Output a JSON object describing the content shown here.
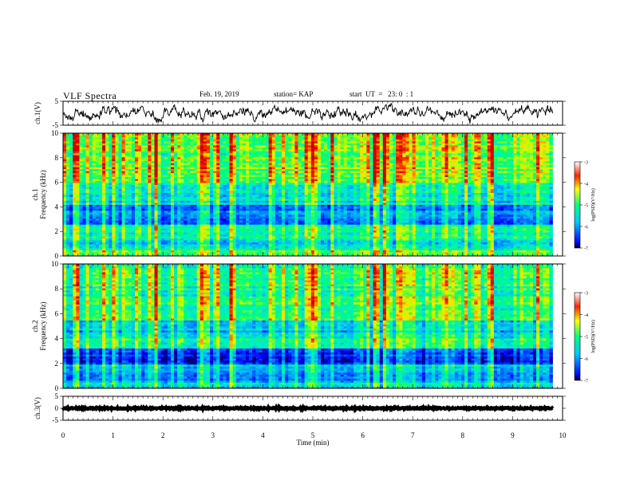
{
  "header": {
    "title": "VLF Spectra",
    "date": "Feb. 19, 2019",
    "station": "station= KAP",
    "start_ut": "start  UT  =   23: 0  : 1"
  },
  "chart_data": [
    {
      "type": "line",
      "name": "ch1-waveform",
      "ylabel": "ch.1(V)",
      "ylim": [
        -5,
        5
      ],
      "yticks": [
        "5",
        "-5"
      ],
      "xlim": [
        0,
        10
      ],
      "trace_level_V": 0,
      "trace_extent_min": 9.8
    },
    {
      "type": "heatmap",
      "name": "ch1-spectrogram",
      "ylabel_line1": "ch.1",
      "ylabel_line2": "Frequency (kHz)",
      "ylim": [
        0,
        10
      ],
      "yticks": [
        "0",
        "2",
        "4",
        "6",
        "8",
        "10"
      ],
      "xlim": [
        0,
        10
      ],
      "data_extent_min": 9.8,
      "colorbar": {
        "range": [
          -7,
          -3
        ],
        "ticks": [
          "-3",
          "-4",
          "-5",
          "-6",
          "-7"
        ],
        "label": "log(PSD)(V²/Hz)"
      },
      "bands": [
        {
          "from": 0,
          "to": 0.5,
          "level": 0.48
        },
        {
          "from": 0.5,
          "to": 1.5,
          "level": 0.35
        },
        {
          "from": 1.5,
          "to": 2.6,
          "level": 0.42
        },
        {
          "from": 2.6,
          "to": 3.3,
          "level": 0.14
        },
        {
          "from": 3.3,
          "to": 4.2,
          "level": 0.24
        },
        {
          "from": 4.2,
          "to": 6.0,
          "level": 0.36
        },
        {
          "from": 6.0,
          "to": 10.0,
          "level": 0.55
        }
      ]
    },
    {
      "type": "heatmap",
      "name": "ch2-spectrogram",
      "ylabel_line1": "ch.2",
      "ylabel_line2": "Frequency (kHz)",
      "ylim": [
        0,
        10
      ],
      "yticks": [
        "0",
        "2",
        "4",
        "6",
        "8",
        "10"
      ],
      "xlim": [
        0,
        10
      ],
      "data_extent_min": 9.8,
      "colorbar": {
        "range": [
          -7,
          -3
        ],
        "ticks": [
          "-3",
          "-4",
          "-5",
          "-6",
          "-7"
        ],
        "label": "log(PSD)(V²/Hz)"
      },
      "bands": [
        {
          "from": 0,
          "to": 0.6,
          "level": 0.32
        },
        {
          "from": 0.6,
          "to": 2.0,
          "level": 0.26
        },
        {
          "from": 2.0,
          "to": 3.3,
          "level": 0.07
        },
        {
          "from": 3.3,
          "to": 4.3,
          "level": 0.4
        },
        {
          "from": 4.3,
          "to": 5.5,
          "level": 0.3
        },
        {
          "from": 5.5,
          "to": 10.0,
          "level": 0.47
        }
      ]
    },
    {
      "type": "line",
      "name": "ch3-waveform",
      "ylabel": "ch.3(V)",
      "ylim": [
        -5,
        5
      ],
      "yticks": [
        "5",
        "0",
        "-5"
      ],
      "xlim": [
        0,
        10
      ],
      "trace_level_V": 0,
      "trace_extent_min": 9.8
    }
  ],
  "xaxis": {
    "label": "Time (min)",
    "ticks": [
      "0",
      "1",
      "2",
      "3",
      "4",
      "5",
      "6",
      "7",
      "8",
      "9",
      "10"
    ]
  }
}
